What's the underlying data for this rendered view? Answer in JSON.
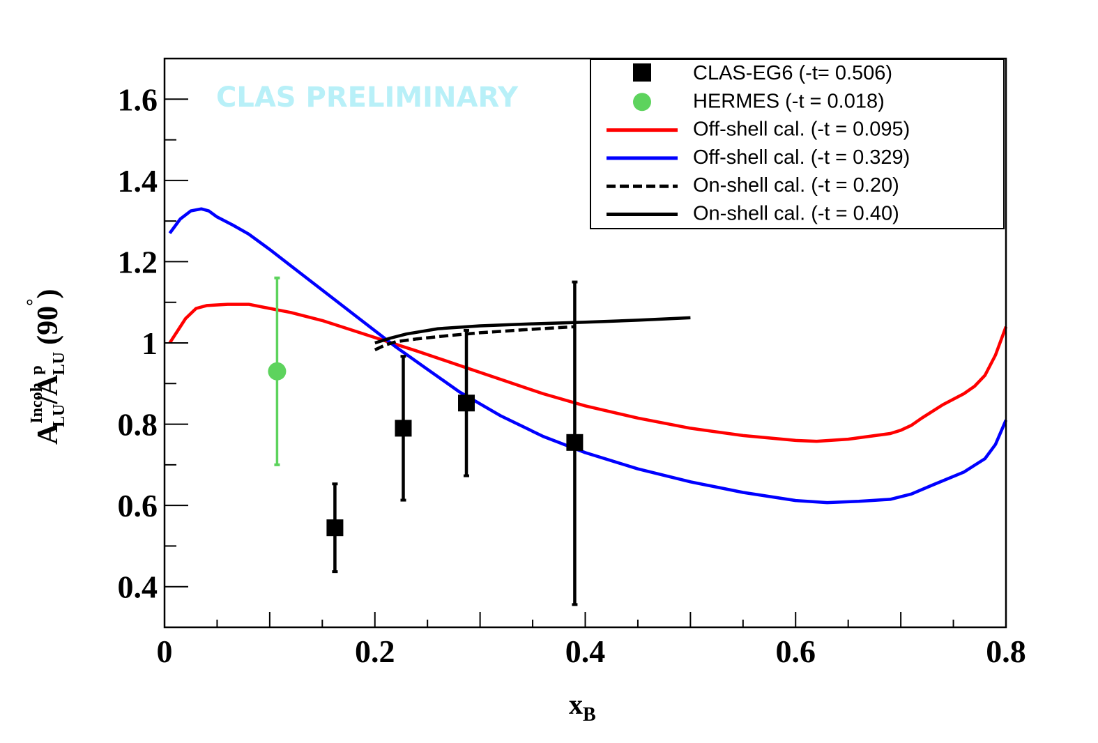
{
  "chart_data": {
    "type": "scatter",
    "title": "",
    "watermark": "CLAS PRELIMINARY",
    "xlabel": {
      "main": "x",
      "sub": "B"
    },
    "ylabel": {
      "A1": "A",
      "sup1": "Incoh",
      "sub1": "LU",
      "slash": "/",
      "A2": "A",
      "sup2": "p",
      "sub2": "LU",
      "paren": "(90",
      "degree": "°",
      "close": ")"
    },
    "xlim": [
      0,
      0.8
    ],
    "ylim": [
      0.3,
      1.7
    ],
    "xticks": [
      0,
      0.2,
      0.4,
      0.6,
      0.8
    ],
    "xtick_labels": [
      "0",
      "0.2",
      "0.4",
      "0.6",
      "0.8"
    ],
    "yticks": [
      0.4,
      0.6,
      0.8,
      1.0,
      1.2,
      1.4,
      1.6
    ],
    "ytick_labels": [
      "0.4",
      "0.6",
      "0.8",
      "1",
      "1.2",
      "1.4",
      "1.6"
    ],
    "grid": false,
    "legend_position": "top-right",
    "series": [
      {
        "name": "CLAS-EG6 (-t= 0.506)",
        "kind": "points",
        "marker": "square",
        "color": "#000000",
        "points": [
          {
            "x": 0.162,
            "y": 0.545,
            "ylo": 0.437,
            "yhi": 0.653
          },
          {
            "x": 0.227,
            "y": 0.79,
            "ylo": 0.613,
            "yhi": 0.967
          },
          {
            "x": 0.287,
            "y": 0.852,
            "ylo": 0.673,
            "yhi": 1.031
          },
          {
            "x": 0.39,
            "y": 0.755,
            "ylo": 0.356,
            "yhi": 1.15
          }
        ]
      },
      {
        "name": "HERMES (-t = 0.018)",
        "kind": "points",
        "marker": "circle",
        "color": "#5dd35d",
        "points": [
          {
            "x": 0.107,
            "y": 0.93,
            "ylo": 0.7,
            "yhi": 1.16
          }
        ]
      },
      {
        "name": "Off-shell cal. (-t = 0.095)",
        "kind": "line",
        "dash": "solid",
        "color": "#ff0000",
        "x": [
          0.005,
          0.02,
          0.03,
          0.04,
          0.06,
          0.08,
          0.1,
          0.12,
          0.15,
          0.18,
          0.21,
          0.24,
          0.28,
          0.32,
          0.36,
          0.4,
          0.45,
          0.5,
          0.55,
          0.6,
          0.62,
          0.65,
          0.69,
          0.7,
          0.71,
          0.72,
          0.74,
          0.76,
          0.77,
          0.78,
          0.79,
          0.8
        ],
        "y": [
          1.0,
          1.06,
          1.085,
          1.092,
          1.095,
          1.095,
          1.085,
          1.075,
          1.055,
          1.03,
          1.005,
          0.98,
          0.945,
          0.91,
          0.875,
          0.845,
          0.815,
          0.79,
          0.772,
          0.76,
          0.758,
          0.763,
          0.777,
          0.785,
          0.797,
          0.815,
          0.848,
          0.875,
          0.893,
          0.92,
          0.97,
          1.04
        ]
      },
      {
        "name": "Off-shell cal. (-t = 0.329)",
        "kind": "line",
        "dash": "solid",
        "color": "#0000ff",
        "x": [
          0.005,
          0.015,
          0.025,
          0.035,
          0.042,
          0.05,
          0.065,
          0.08,
          0.1,
          0.13,
          0.16,
          0.19,
          0.22,
          0.25,
          0.28,
          0.32,
          0.36,
          0.4,
          0.45,
          0.5,
          0.55,
          0.6,
          0.63,
          0.66,
          0.69,
          0.71,
          0.73,
          0.76,
          0.78,
          0.79,
          0.8
        ],
        "y": [
          1.27,
          1.305,
          1.325,
          1.33,
          1.325,
          1.31,
          1.29,
          1.268,
          1.23,
          1.17,
          1.11,
          1.05,
          0.99,
          0.935,
          0.88,
          0.82,
          0.77,
          0.73,
          0.69,
          0.658,
          0.632,
          0.612,
          0.607,
          0.61,
          0.615,
          0.628,
          0.65,
          0.682,
          0.715,
          0.75,
          0.81
        ]
      },
      {
        "name": "On-shell cal. (-t = 0.20)",
        "kind": "line",
        "dash": "dashed",
        "color": "#000000",
        "x": [
          0.2,
          0.21,
          0.22,
          0.24,
          0.27,
          0.3,
          0.34,
          0.39
        ],
        "y": [
          0.983,
          0.995,
          1.003,
          1.01,
          1.018,
          1.025,
          1.032,
          1.04
        ]
      },
      {
        "name": "On-shell cal. (-t = 0.40)",
        "kind": "line",
        "dash": "solid",
        "color": "#000000",
        "x": [
          0.2,
          0.215,
          0.23,
          0.26,
          0.3,
          0.35,
          0.4,
          0.45,
          0.5
        ],
        "y": [
          1.0,
          1.012,
          1.022,
          1.035,
          1.042,
          1.047,
          1.051,
          1.056,
          1.062
        ]
      }
    ]
  }
}
